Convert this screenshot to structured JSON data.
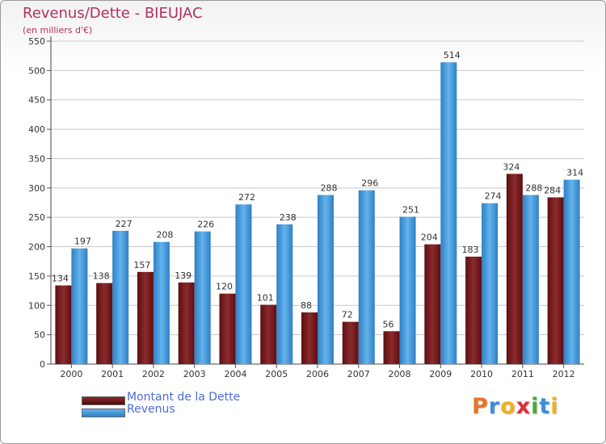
{
  "title": "Revenus/Dette - BIEUJAC",
  "subtitle": "(en milliers d'€)",
  "colors": {
    "title": "#b03060",
    "dette": "#7a1a1c",
    "revenus": "#3c9be0",
    "legend_text": "#4a6bd8"
  },
  "legend": {
    "dette_label": "Montant de la Dette",
    "revenus_label": "Revenus"
  },
  "logo": {
    "letters": [
      "P",
      "r",
      "o",
      "x",
      "i",
      "t",
      "i"
    ]
  },
  "chart_data": {
    "type": "bar",
    "title": "Revenus/Dette - BIEUJAC",
    "subtitle": "(en milliers d'€)",
    "xlabel": "",
    "ylabel": "",
    "categories": [
      "2000",
      "2001",
      "2002",
      "2003",
      "2004",
      "2005",
      "2006",
      "2007",
      "2008",
      "2009",
      "2010",
      "2011",
      "2012"
    ],
    "series": [
      {
        "name": "Montant de la Dette",
        "values": [
          134,
          138,
          157,
          139,
          120,
          101,
          88,
          72,
          56,
          204,
          183,
          324,
          284
        ]
      },
      {
        "name": "Revenus",
        "values": [
          197,
          227,
          208,
          226,
          272,
          238,
          288,
          296,
          251,
          514,
          274,
          288,
          314
        ]
      }
    ],
    "ylim": [
      0,
      550
    ],
    "yticks": [
      0,
      50,
      100,
      150,
      200,
      250,
      300,
      350,
      400,
      450,
      500,
      550
    ],
    "grid": true,
    "legend_position": "bottom-left"
  }
}
